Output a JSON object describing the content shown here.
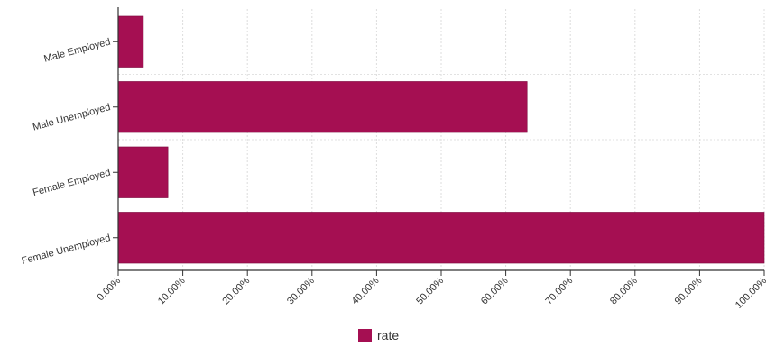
{
  "chart_data": {
    "type": "bar",
    "orientation": "horizontal",
    "categories": [
      "Male Employed",
      "Male Unemployed",
      "Female Employed",
      "Female Unemployed"
    ],
    "series": [
      {
        "name": "rate",
        "values": [
          3.9,
          63.3,
          7.7,
          100.0
        ],
        "color": "#a50f52"
      }
    ],
    "x_ticks": [
      "0.00%",
      "10.00%",
      "20.00%",
      "30.00%",
      "40.00%",
      "50.00%",
      "60.00%",
      "70.00%",
      "80.00%",
      "90.00%",
      "100.00%"
    ],
    "xlim": [
      0,
      100
    ],
    "grid": true,
    "legend_position": "bottom-center"
  }
}
